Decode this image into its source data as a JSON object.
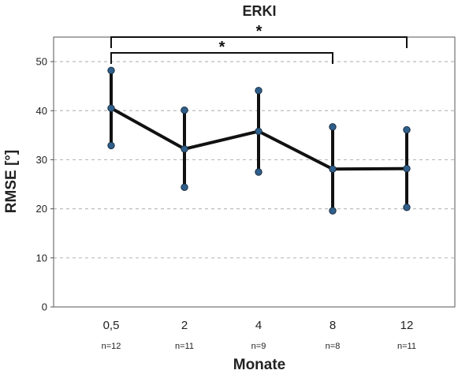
{
  "chart_data": {
    "type": "line",
    "title": "ERKI",
    "xlabel": "Monate",
    "ylabel": "RMSE [°]",
    "categories": [
      "0,5",
      "2",
      "4",
      "8",
      "12"
    ],
    "n_labels": [
      "n=12",
      "n=11",
      "n=9",
      "n=8",
      "n=11"
    ],
    "series": [
      {
        "values": [
          40.5,
          32.2,
          35.8,
          28.1,
          28.2
        ],
        "error_upper": [
          48.2,
          40.1,
          44.1,
          36.7,
          36.1
        ],
        "error_lower": [
          32.9,
          24.4,
          27.5,
          19.6,
          20.3
        ]
      }
    ],
    "ylim": [
      0,
      55
    ],
    "yticks": [
      "0",
      "10",
      "20",
      "30",
      "40",
      "50"
    ],
    "grid": "horizontal-dashed",
    "significance": [
      {
        "from": "0,5",
        "to": "12",
        "label": "*"
      },
      {
        "from": "0,5",
        "to": "8",
        "label": "*"
      }
    ],
    "colors": {
      "line": "#111111",
      "marker": "#2f5f8a",
      "grid": "#bbbbbb"
    }
  }
}
